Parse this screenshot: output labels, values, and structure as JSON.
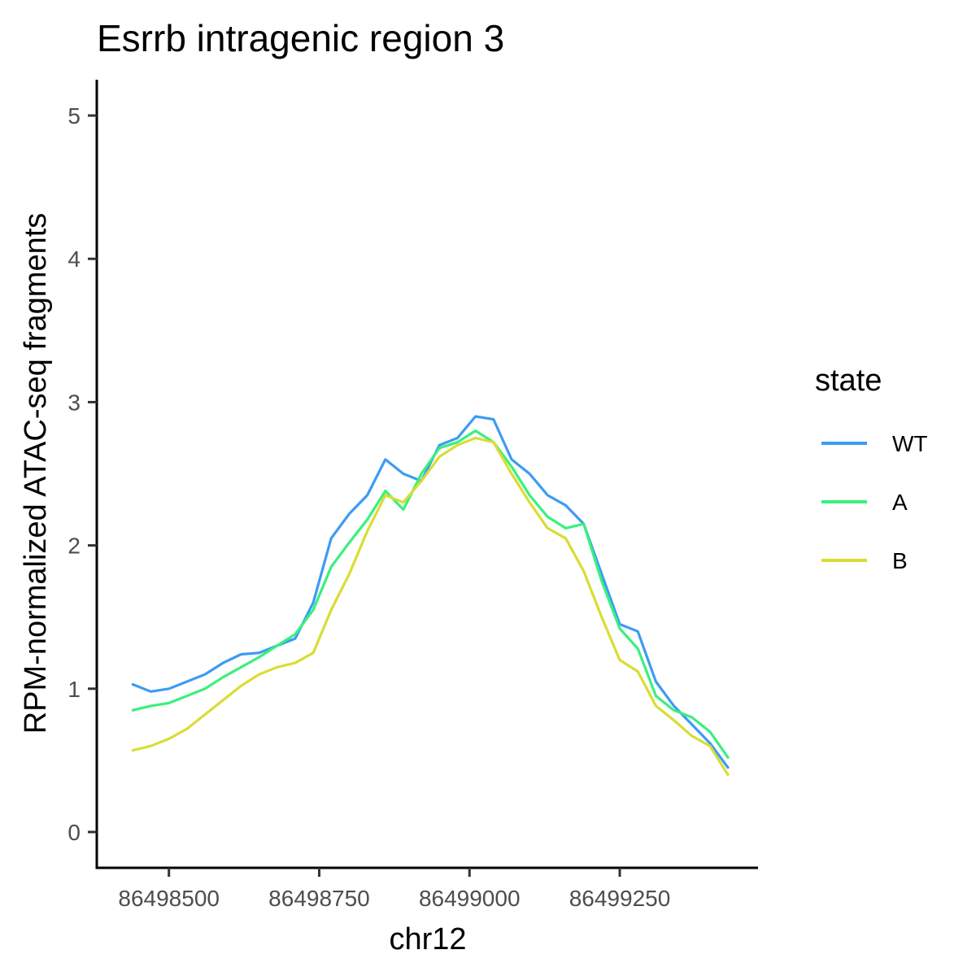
{
  "chart_data": {
    "type": "line",
    "title": "Esrrb intragenic region 3",
    "xlabel": "chr12",
    "ylabel": "RPM-normalized ATAC-seq fragments",
    "xlim": [
      86498380,
      86499480
    ],
    "ylim": [
      -0.25,
      5.25
    ],
    "x_ticks": [
      86498500,
      86498750,
      86499000,
      86499250
    ],
    "x_tick_labels": [
      "86498500",
      "86498750",
      "86499000",
      "86499250"
    ],
    "y_ticks": [
      0,
      1,
      2,
      3,
      4,
      5
    ],
    "y_tick_labels": [
      "0",
      "1",
      "2",
      "3",
      "4",
      "5"
    ],
    "grid": false,
    "legend": {
      "title": "state",
      "position": "right"
    },
    "x": [
      86498440,
      86498470,
      86498500,
      86498530,
      86498560,
      86498590,
      86498620,
      86498650,
      86498680,
      86498710,
      86498740,
      86498770,
      86498800,
      86498830,
      86498860,
      86498890,
      86498920,
      86498950,
      86498980,
      86499010,
      86499040,
      86499070,
      86499100,
      86499130,
      86499160,
      86499190,
      86499220,
      86499250,
      86499280,
      86499310,
      86499340,
      86499370,
      86499400,
      86499430
    ],
    "series": [
      {
        "name": "WT",
        "color": "#3d9bf4",
        "values": [
          1.03,
          0.98,
          1.0,
          1.05,
          1.1,
          1.18,
          1.24,
          1.25,
          1.3,
          1.35,
          1.6,
          2.05,
          2.22,
          2.35,
          2.6,
          2.5,
          2.45,
          2.7,
          2.75,
          2.9,
          2.88,
          2.6,
          2.5,
          2.35,
          2.28,
          2.15,
          1.8,
          1.45,
          1.4,
          1.05,
          0.88,
          0.75,
          0.62,
          0.45
        ]
      },
      {
        "name": "A",
        "color": "#3af07d",
        "values": [
          0.85,
          0.88,
          0.9,
          0.95,
          1.0,
          1.08,
          1.15,
          1.22,
          1.3,
          1.38,
          1.55,
          1.85,
          2.02,
          2.18,
          2.38,
          2.25,
          2.5,
          2.68,
          2.72,
          2.8,
          2.72,
          2.55,
          2.35,
          2.2,
          2.12,
          2.15,
          1.75,
          1.42,
          1.28,
          0.95,
          0.85,
          0.8,
          0.7,
          0.52
        ]
      },
      {
        "name": "B",
        "color": "#d9dd33",
        "values": [
          0.57,
          0.6,
          0.65,
          0.72,
          0.82,
          0.92,
          1.02,
          1.1,
          1.15,
          1.18,
          1.25,
          1.55,
          1.8,
          2.1,
          2.35,
          2.3,
          2.45,
          2.62,
          2.7,
          2.75,
          2.72,
          2.5,
          2.3,
          2.12,
          2.05,
          1.82,
          1.5,
          1.2,
          1.12,
          0.88,
          0.78,
          0.67,
          0.6,
          0.4
        ]
      }
    ]
  }
}
